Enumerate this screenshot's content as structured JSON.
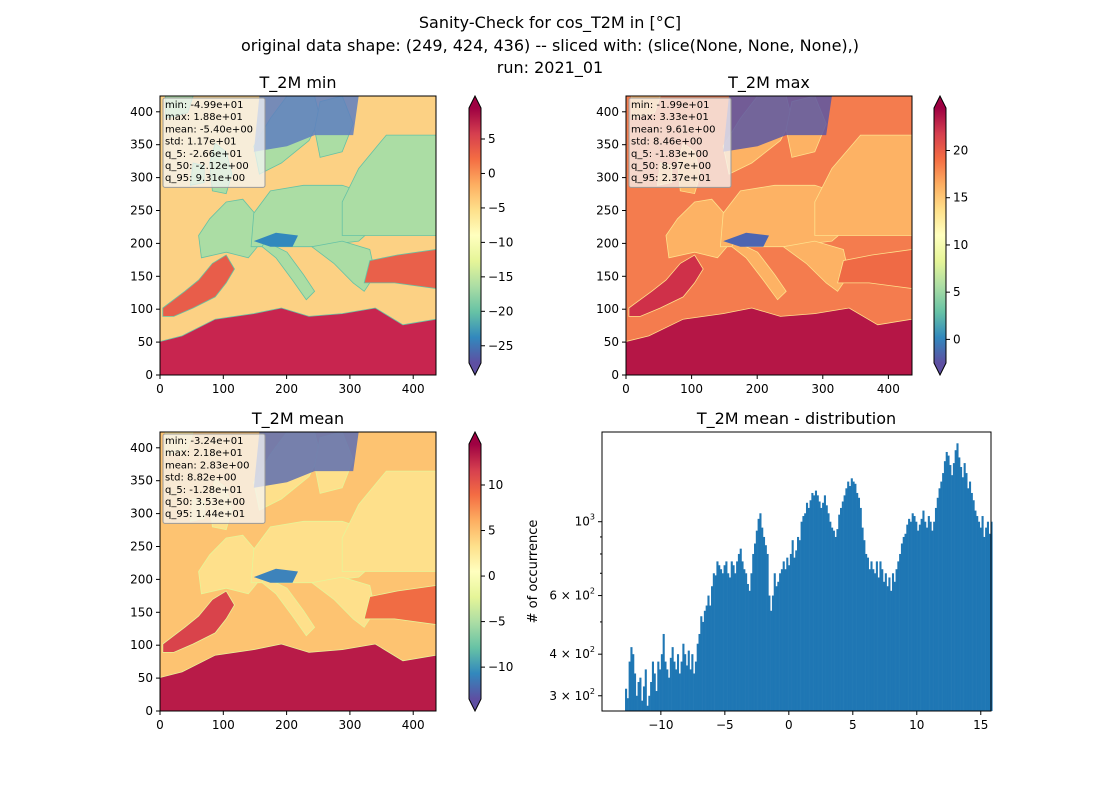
{
  "suptitle": {
    "line1": "Sanity-Check for cos_T2M in [°C]",
    "line2": "original data shape: (249, 424, 436) -- sliced with: (slice(None, None, None),)",
    "line3": "run: 2021_01"
  },
  "chart_data": [
    {
      "type": "heatmap",
      "title": "T_2M min",
      "colormap": "Spectral_r",
      "xlim": [
        0,
        436
      ],
      "ylim": [
        0,
        424
      ],
      "x_ticks": [
        0,
        100,
        200,
        300,
        400
      ],
      "y_ticks": [
        0,
        50,
        100,
        150,
        200,
        250,
        300,
        350,
        400
      ],
      "colorbar": {
        "min": -27.5,
        "max": 9.5,
        "ticks": [
          -25,
          -20,
          -15,
          -10,
          -5,
          0,
          5
        ],
        "extend": "both"
      },
      "stats": [
        "min: -4.99e+01",
        "max: 1.88e+01",
        "mean: -5.40e+00",
        "std: 1.17e+01",
        "q_5: -2.66e+01",
        "q_50: -2.12e+00",
        "q_95: 9.31e+00"
      ]
    },
    {
      "type": "heatmap",
      "title": "T_2M max",
      "colormap": "Spectral_r",
      "xlim": [
        0,
        436
      ],
      "ylim": [
        0,
        424
      ],
      "x_ticks": [
        0,
        100,
        200,
        300,
        400
      ],
      "y_ticks": [
        0,
        50,
        100,
        150,
        200,
        250,
        300,
        350,
        400
      ],
      "colorbar": {
        "min": -2.5,
        "max": 24.5,
        "ticks": [
          0,
          5,
          10,
          15,
          20
        ],
        "extend": "both"
      },
      "stats": [
        "min: -1.99e+01",
        "max: 3.33e+01",
        "mean: 9.61e+00",
        "std: 8.46e+00",
        "q_5: -1.83e+00",
        "q_50: 8.97e+00",
        "q_95: 2.37e+01"
      ]
    },
    {
      "type": "heatmap",
      "title": "T_2M mean",
      "colormap": "Spectral_r",
      "xlim": [
        0,
        436
      ],
      "ylim": [
        0,
        424
      ],
      "x_ticks": [
        0,
        100,
        200,
        300,
        400
      ],
      "y_ticks": [
        0,
        50,
        100,
        150,
        200,
        250,
        300,
        350,
        400
      ],
      "colorbar": {
        "min": -13.5,
        "max": 14.5,
        "ticks": [
          -10,
          -5,
          0,
          5,
          10
        ],
        "extend": "both"
      },
      "stats": [
        "min: -3.24e+01",
        "max: 2.18e+01",
        "mean: 2.83e+00",
        "std: 8.82e+00",
        "q_5: -1.28e+01",
        "q_50: 3.53e+00",
        "q_95: 1.44e+01"
      ]
    },
    {
      "type": "bar",
      "title": "T_2M mean - distribution",
      "ylabel": "# of occurrence",
      "yscale": "log",
      "xlim": [
        -14.6,
        15.8
      ],
      "ylim": [
        270,
        1860
      ],
      "x_ticks": [
        -10,
        -5,
        0,
        5,
        10,
        15
      ],
      "x_tick_labels": [
        "−10",
        "−5",
        "0",
        "5",
        "10",
        "15"
      ],
      "y_ticks": [
        {
          "value": 300,
          "label_base": "3 × 10",
          "label_exp": "2"
        },
        {
          "value": 400,
          "label_base": "4 × 10",
          "label_exp": "2"
        },
        {
          "value": 600,
          "label_base": "6 × 10",
          "label_exp": "2"
        },
        {
          "value": 1000,
          "label_base": "10",
          "label_exp": "3"
        }
      ],
      "bar_color": "#1f77b4",
      "bins": {
        "start": -12.8,
        "width": 0.14
      },
      "values": [
        315,
        295,
        380,
        420,
        400,
        350,
        300,
        330,
        340,
        290,
        320,
        360,
        280,
        300,
        330,
        380,
        350,
        310,
        380,
        360,
        400,
        460,
        380,
        360,
        340,
        390,
        420,
        380,
        360,
        400,
        350,
        380,
        430,
        400,
        370,
        410,
        360,
        400,
        350,
        380,
        430,
        460,
        520,
        500,
        540,
        560,
        600,
        560,
        640,
        700,
        690,
        760,
        740,
        720,
        700,
        740,
        760,
        700,
        680,
        760,
        740,
        700,
        760,
        800,
        830,
        760,
        720,
        700,
        650,
        620,
        700,
        800,
        860,
        940,
        1020,
        1060,
        960,
        900,
        850,
        800,
        600,
        540,
        600,
        700,
        640,
        660,
        700,
        720,
        760,
        720,
        780,
        740,
        800,
        880,
        780,
        820,
        900,
        880,
        1000,
        1040,
        1060,
        1140,
        1100,
        1160,
        1220,
        1200,
        1240,
        1200,
        1150,
        1100,
        1140,
        1200,
        1120,
        1060,
        1000,
        960,
        940,
        900,
        950,
        1050,
        1100,
        1150,
        1200,
        1260,
        1320,
        1280,
        1350,
        1320,
        1300,
        1220,
        1180,
        1100,
        960,
        880,
        800,
        780,
        720,
        760,
        720,
        700,
        760,
        680,
        760,
        720,
        660,
        700,
        640,
        680,
        620,
        700,
        660,
        720,
        760,
        800,
        860,
        900,
        920,
        980,
        1020,
        1000,
        1060,
        1040,
        1000,
        940,
        980,
        1020,
        1080,
        1000,
        960,
        1040,
        1000,
        940,
        1000,
        1100,
        1180,
        1260,
        1320,
        1400,
        1520,
        1620,
        1580,
        1480,
        1380,
        1500,
        1640,
        1720,
        1560,
        1460,
        1360,
        1500,
        1400,
        1260,
        1320,
        1220,
        1160,
        1080,
        1040,
        1000,
        960,
        1040,
        900,
        960,
        1000,
        920,
        1000
      ]
    }
  ]
}
